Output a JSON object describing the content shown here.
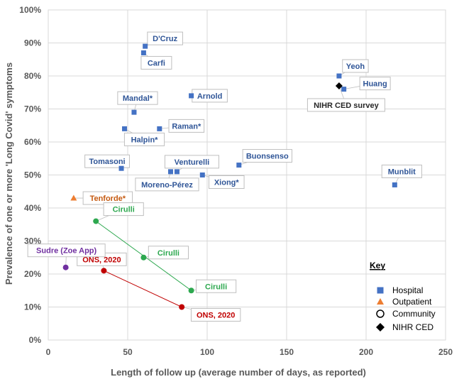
{
  "chart_data": {
    "type": "scatter",
    "title": "",
    "xlabel": "Length of follow up (average number of days, as reported)",
    "ylabel": "Prevalence of one or more 'Long Covid' symptoms",
    "xlim": [
      0,
      250
    ],
    "ylim": [
      0,
      100
    ],
    "x_ticks": [
      "0",
      "50",
      "100",
      "150",
      "200",
      "250"
    ],
    "y_ticks": [
      "0%",
      "10%",
      "20%",
      "30%",
      "40%",
      "50%",
      "60%",
      "70%",
      "80%",
      "90%",
      "100%"
    ],
    "grid": true,
    "colors": {
      "Hospital": "#4472C4",
      "Outpatient": "#ED7D31",
      "Community-Cirulli": "#2DA84F",
      "Community-ONS": "#C00000",
      "Community-Sudre": "#7030A0",
      "NIHR CED": "#000000"
    },
    "series": [
      {
        "name": "Hospital",
        "points": [
          {
            "label": "D'Cruz",
            "x": 61,
            "y": 89
          },
          {
            "label": "Carfi",
            "x": 60,
            "y": 87
          },
          {
            "label": "Mandal*",
            "x": 54,
            "y": 69
          },
          {
            "label": "Arnold",
            "x": 90,
            "y": 74
          },
          {
            "label": "Halpin*",
            "x": 48,
            "y": 64
          },
          {
            "label": "Raman*",
            "x": 70,
            "y": 64
          },
          {
            "label": "Tomasoni",
            "x": 46,
            "y": 52
          },
          {
            "label": "Venturelli",
            "x": 81,
            "y": 51
          },
          {
            "label": "Moreno-Pérez",
            "x": 77,
            "y": 51
          },
          {
            "label": "Xiong*",
            "x": 97,
            "y": 50
          },
          {
            "label": "Buonsenso",
            "x": 120,
            "y": 53
          },
          {
            "label": "Yeoh",
            "x": 183,
            "y": 80
          },
          {
            "label": "Huang",
            "x": 186,
            "y": 76
          },
          {
            "label": "Munblit",
            "x": 218,
            "y": 47
          }
        ]
      },
      {
        "name": "Outpatient",
        "points": [
          {
            "label": "Tenforde*",
            "x": 16,
            "y": 43
          }
        ]
      },
      {
        "name": "Community",
        "points": [
          {
            "label": "Cirulli",
            "x": 30,
            "y": 36
          },
          {
            "label": "Cirulli",
            "x": 60,
            "y": 25
          },
          {
            "label": "Cirulli",
            "x": 90,
            "y": 15
          },
          {
            "label": "ONS, 2020",
            "x": 35,
            "y": 21
          },
          {
            "label": "ONS, 2020",
            "x": 84,
            "y": 10
          },
          {
            "label": "Sudre (Zoe App)",
            "x": 11,
            "y": 22
          }
        ]
      },
      {
        "name": "NIHR CED",
        "points": [
          {
            "label": "NIHR CED survey",
            "x": 183,
            "y": 77
          }
        ]
      }
    ],
    "legend": {
      "title": "Key",
      "placement": "bottom-right",
      "items": [
        "Hospital",
        "Outpatient",
        "Community",
        "NIHR CED"
      ]
    }
  }
}
